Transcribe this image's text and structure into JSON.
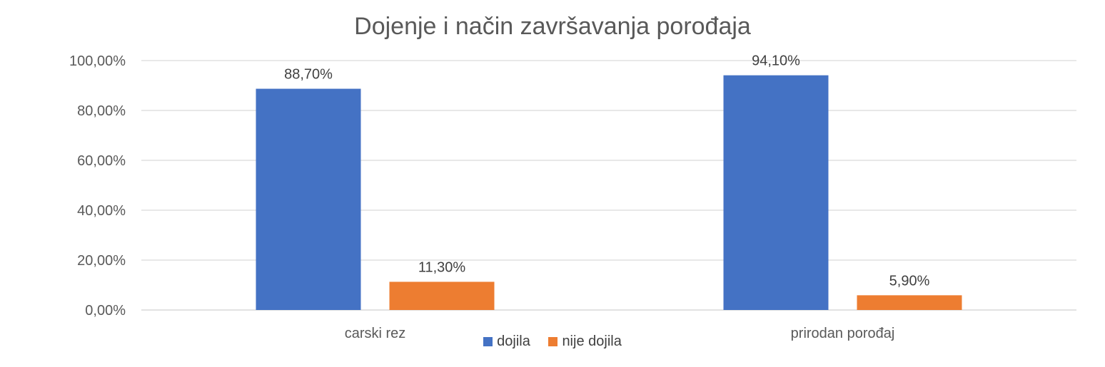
{
  "chart_data": {
    "type": "bar",
    "title": "Dojenje i način završavanja porođaja",
    "categories": [
      "carski rez",
      "prirodan porođaj"
    ],
    "series": [
      {
        "name": "dojila",
        "values": [
          88.7,
          94.1
        ],
        "labels": [
          "88,70%",
          "94,10%"
        ],
        "color": "#4472C4"
      },
      {
        "name": "nije dojila",
        "values": [
          11.3,
          5.9
        ],
        "labels": [
          "11,30%",
          "5,90%"
        ],
        "color": "#ED7D31"
      }
    ],
    "ylim": [
      0,
      100
    ],
    "yticks": [
      0,
      20,
      40,
      60,
      80,
      100
    ],
    "ytick_labels": [
      "0,00%",
      "20,00%",
      "40,00%",
      "60,00%",
      "80,00%",
      "100,00%"
    ],
    "grid": true,
    "legend_position": "bottom",
    "xlabel": "",
    "ylabel": ""
  }
}
